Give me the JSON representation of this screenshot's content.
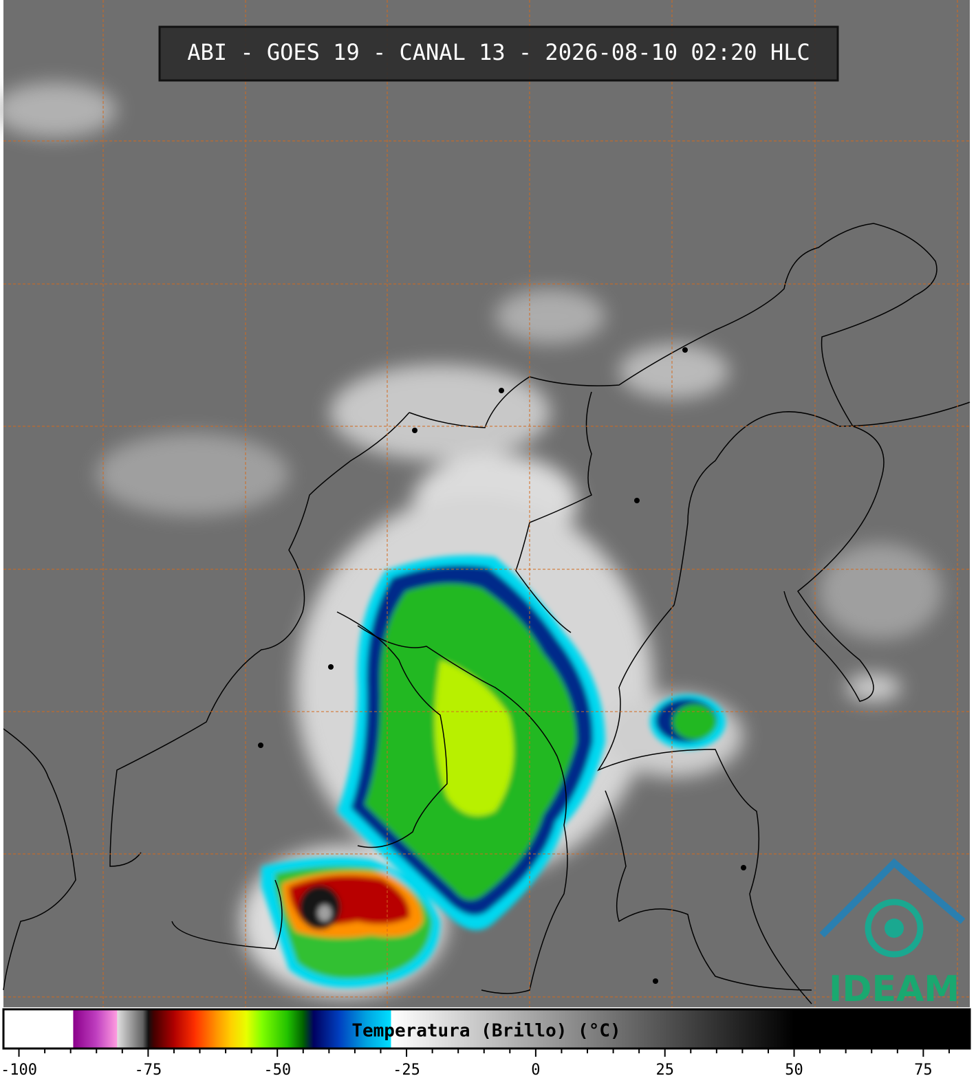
{
  "title": "ABI - GOES 19 - CANAL 13 - 2026-08-10 02:20 HLC",
  "logo": "IDEAM",
  "colorbar": {
    "label": "Temperatura (Brillo) (°C)",
    "lim": [
      -103,
      84
    ],
    "ticks": [
      -100,
      -75,
      -50,
      -25,
      0,
      25,
      50,
      75
    ],
    "minor_ticks": [
      -95,
      -90,
      -85,
      -80,
      -70,
      -65,
      -60,
      -55,
      -45,
      -40,
      -35,
      -30,
      -20,
      -15,
      -10,
      -5,
      5,
      10,
      15,
      20,
      30,
      35,
      40,
      45,
      55,
      60,
      65,
      70,
      80
    ],
    "stops": [
      {
        "value": -103,
        "color": "#ffffff"
      },
      {
        "value": -89.5,
        "color": "#ffffff"
      },
      {
        "value": -89.5,
        "color": "#8b008b"
      },
      {
        "value": -85,
        "color": "#c040c0"
      },
      {
        "value": -81,
        "color": "#ff9ee0"
      },
      {
        "value": -81,
        "color": "#e0e0e0"
      },
      {
        "value": -76,
        "color": "#606060"
      },
      {
        "value": -75,
        "color": "#101010"
      },
      {
        "value": -74,
        "color": "#400000"
      },
      {
        "value": -70,
        "color": "#b00000"
      },
      {
        "value": -66,
        "color": "#ff3000"
      },
      {
        "value": -62,
        "color": "#ff9000"
      },
      {
        "value": -59,
        "color": "#ffd000"
      },
      {
        "value": -56,
        "color": "#e8ff00"
      },
      {
        "value": -53,
        "color": "#80ff00"
      },
      {
        "value": -48,
        "color": "#20c000"
      },
      {
        "value": -45,
        "color": "#006000"
      },
      {
        "value": -43,
        "color": "#000060"
      },
      {
        "value": -38,
        "color": "#0040c0"
      },
      {
        "value": -33,
        "color": "#00a0e0"
      },
      {
        "value": -28,
        "color": "#00e0ff"
      },
      {
        "value": -28,
        "color": "#ffffff"
      },
      {
        "value": 50,
        "color": "#000000"
      },
      {
        "value": 84,
        "color": "#000000"
      }
    ]
  }
}
